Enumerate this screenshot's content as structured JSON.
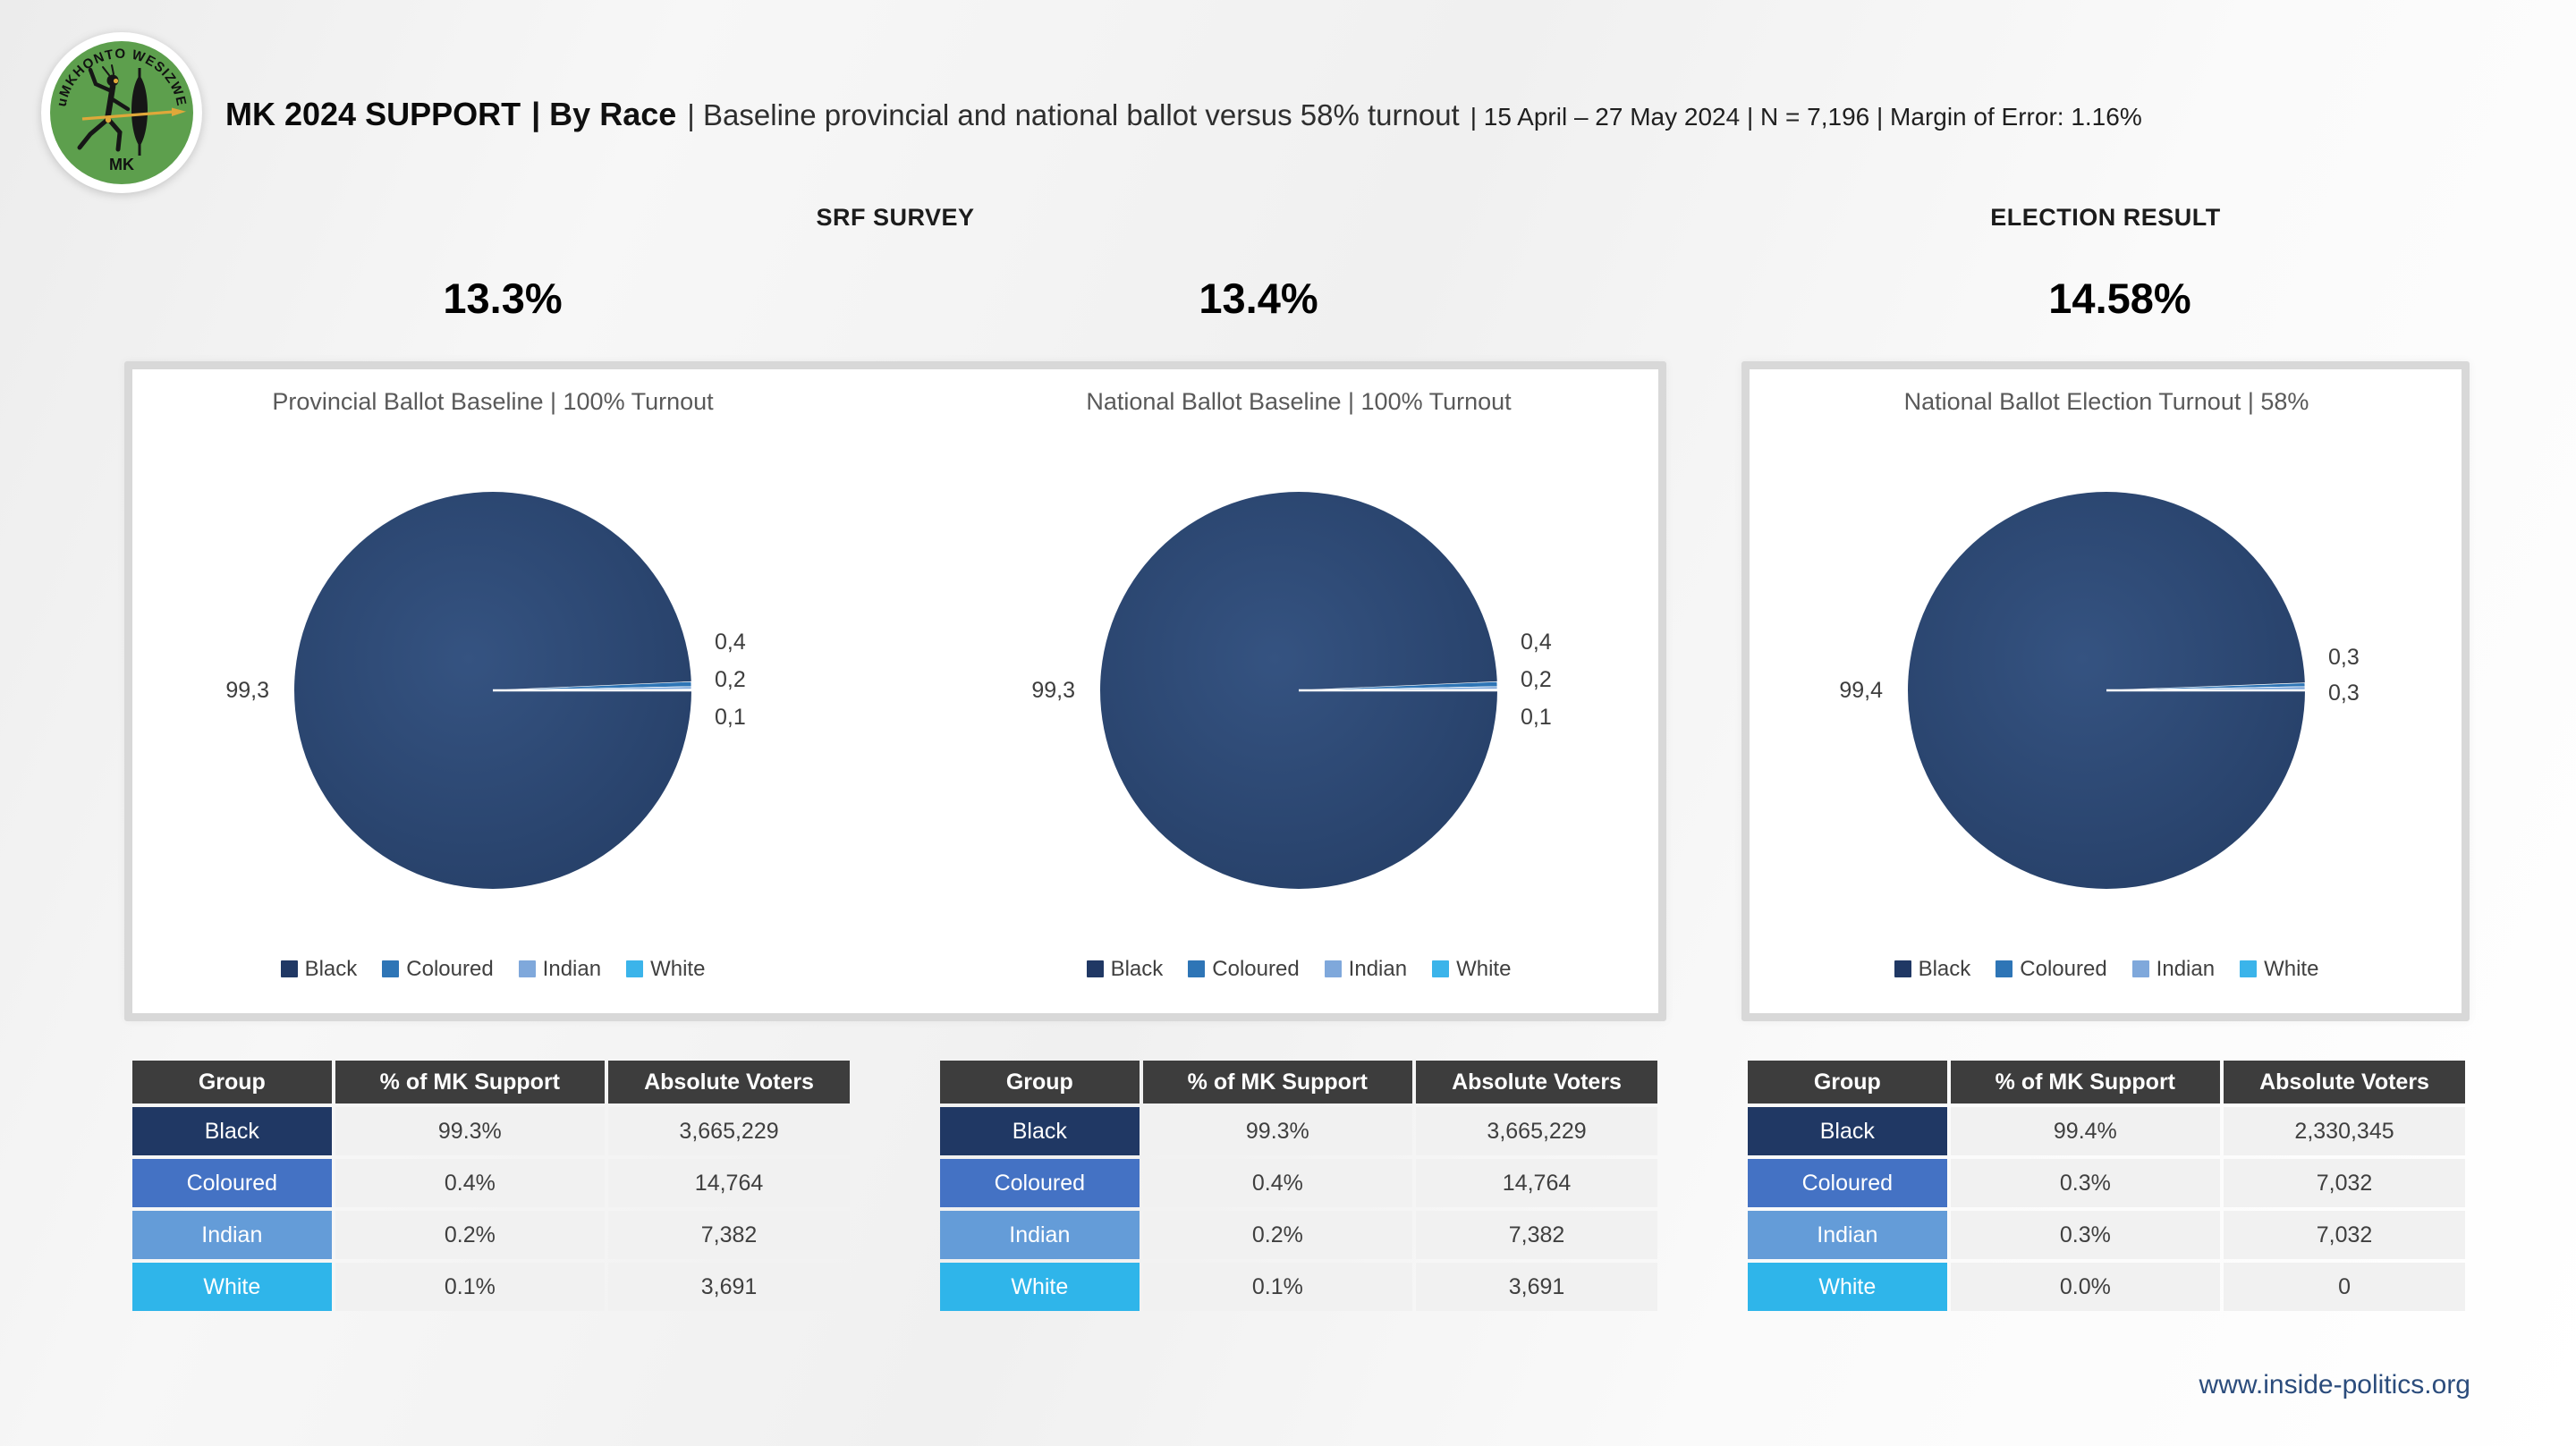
{
  "header": {
    "logo": {
      "arc_text": "uMKHONTO WESIZWE",
      "mk_label": "MK"
    },
    "title_main": "MK 2024 SUPPORT",
    "title_sub": "| By Race",
    "title_desc": "| Baseline provincial and national ballot versus 58% turnout",
    "title_meta": "| 15 April – 27 May 2024 | N = 7,196 | Margin of Error: 1.16%"
  },
  "sections": {
    "left": "SRF SURVEY",
    "right": "ELECTION RESULT"
  },
  "summary": {
    "provincial_pct": "13.3%",
    "national_pct": "13.4%",
    "election_pct": "14.58%"
  },
  "chart_data": [
    {
      "type": "pie",
      "title": "Provincial Ballot Baseline | 100% Turnout",
      "categories": [
        "Black",
        "Coloured",
        "Indian",
        "White"
      ],
      "values": [
        99.3,
        0.4,
        0.2,
        0.1
      ],
      "colors": [
        "#203864",
        "#2E75B6",
        "#7FA8DB",
        "#3BB4EA"
      ],
      "point_labels": {
        "left": "99,3",
        "right": [
          "0,4",
          "0,2",
          "0,1"
        ]
      },
      "legend_position": "bottom"
    },
    {
      "type": "pie",
      "title": "National Ballot Baseline | 100% Turnout",
      "categories": [
        "Black",
        "Coloured",
        "Indian",
        "White"
      ],
      "values": [
        99.3,
        0.4,
        0.2,
        0.1
      ],
      "colors": [
        "#203864",
        "#2E75B6",
        "#7FA8DB",
        "#3BB4EA"
      ],
      "point_labels": {
        "left": "99,3",
        "right": [
          "0,4",
          "0,2",
          "0,1"
        ]
      },
      "legend_position": "bottom"
    },
    {
      "type": "pie",
      "title": "National Ballot Election Turnout | 58%",
      "categories": [
        "Black",
        "Coloured",
        "Indian",
        "White"
      ],
      "values": [
        99.4,
        0.3,
        0.3,
        0.0
      ],
      "colors": [
        "#203864",
        "#2E75B6",
        "#7FA8DB",
        "#3BB4EA"
      ],
      "point_labels": {
        "left": "99,4",
        "right": [
          "0,3",
          "0,3"
        ]
      },
      "legend_position": "bottom"
    }
  ],
  "tables": [
    {
      "headers": [
        "Group",
        "% of MK Support",
        "Absolute Voters"
      ],
      "rows": [
        {
          "group": "Black",
          "pct": "99.3%",
          "abs": "3,665,229",
          "color": "#203864"
        },
        {
          "group": "Coloured",
          "pct": "0.4%",
          "abs": "14,764",
          "color": "#4472C4"
        },
        {
          "group": "Indian",
          "pct": "0.2%",
          "abs": "7,382",
          "color": "#649CD8"
        },
        {
          "group": "White",
          "pct": "0.1%",
          "abs": "3,691",
          "color": "#2FB5EA"
        }
      ]
    },
    {
      "headers": [
        "Group",
        "% of MK Support",
        "Absolute Voters"
      ],
      "rows": [
        {
          "group": "Black",
          "pct": "99.3%",
          "abs": "3,665,229",
          "color": "#203864"
        },
        {
          "group": "Coloured",
          "pct": "0.4%",
          "abs": "14,764",
          "color": "#4472C4"
        },
        {
          "group": "Indian",
          "pct": "0.2%",
          "abs": "7,382",
          "color": "#649CD8"
        },
        {
          "group": "White",
          "pct": "0.1%",
          "abs": "3,691",
          "color": "#2FB5EA"
        }
      ]
    },
    {
      "headers": [
        "Group",
        "% of MK Support",
        "Absolute Voters"
      ],
      "rows": [
        {
          "group": "Black",
          "pct": "99.4%",
          "abs": "2,330,345",
          "color": "#203864"
        },
        {
          "group": "Coloured",
          "pct": "0.3%",
          "abs": "7,032",
          "color": "#4472C4"
        },
        {
          "group": "Indian",
          "pct": "0.3%",
          "abs": "7,032",
          "color": "#649CD8"
        },
        {
          "group": "White",
          "pct": "0.0%",
          "abs": "0",
          "color": "#2FB5EA"
        }
      ]
    }
  ],
  "footer": {
    "link": "www.inside-politics.org"
  },
  "colors": {
    "pie_black_center": "#355381",
    "pie_black_edge": "#253e66",
    "table_header_bg": "#3d3d3d",
    "panel_border": "#d8d8d8",
    "logo_green": "#5d9f4d",
    "logo_gold": "#dfa83a",
    "footer_blue": "#2b4c7c"
  }
}
